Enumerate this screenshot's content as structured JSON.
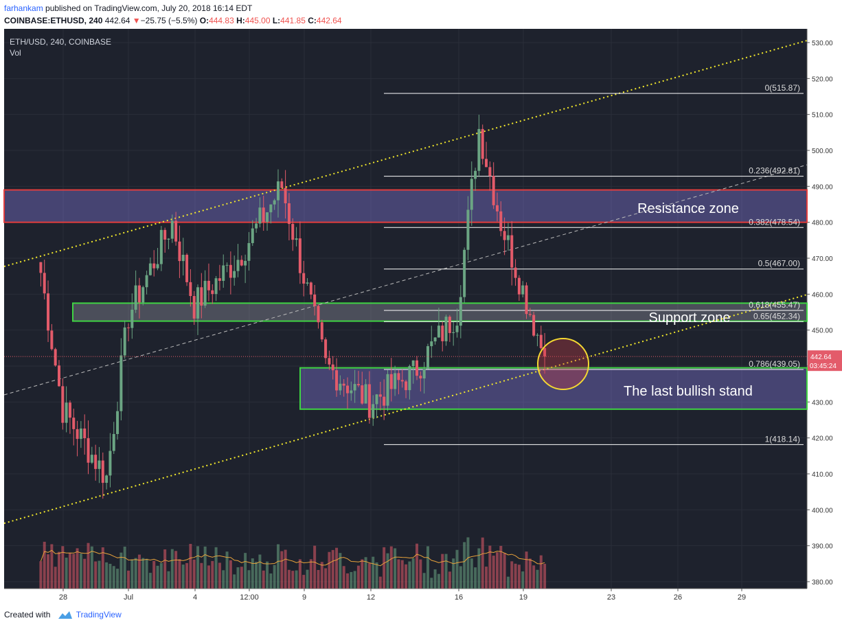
{
  "header": {
    "author": "farhankam",
    "published_text": " published on TradingView.com, July 20, 2018 16:14 EDT",
    "symbol": "COINBASE:ETHUSD, 240",
    "last": "442.64",
    "change_arrow": "▼",
    "change": "−25.75 (−5.5%)",
    "o_label": "O:",
    "o": "444.83",
    "h_label": "H:",
    "h": "445.00",
    "l_label": "L:",
    "l": "441.85",
    "c_label": "C:",
    "c": "442.64"
  },
  "footer": {
    "created_with": "Created with",
    "brand": "TradingView",
    "logo_icon": "tradingview-logo-icon"
  },
  "chart_data": {
    "type": "candlestick",
    "title": "ETH/USD, 240, COINBASE",
    "subtitle": "Vol",
    "ylim": [
      378,
      532
    ],
    "yticks": [
      "530.00",
      "520.00",
      "510.00",
      "500.00",
      "490.00",
      "480.00",
      "470.00",
      "460.00",
      "450.00",
      "440.00",
      "430.00",
      "420.00",
      "410.00",
      "400.00",
      "390.00",
      "380.00"
    ],
    "xticks": [
      "28",
      "Jul",
      "4",
      "12:00",
      "9",
      "12",
      "16",
      "19",
      "23",
      "26",
      "29"
    ],
    "last_price": "442.64",
    "countdown": "03:45:24",
    "colors": {
      "background": "#1e222d",
      "up": "#6ba583",
      "down": "#e35b6a",
      "resistance": "#e23d3d",
      "support": "#3fd443",
      "fib": "#ffffff",
      "trend": "#f4ea2b",
      "circle": "#f4d832"
    },
    "fib_levels": [
      {
        "label": "0(515.87)",
        "value": 515.87
      },
      {
        "label": "0.236(492.81)",
        "value": 492.81
      },
      {
        "label": "0.382(478.54)",
        "value": 478.54
      },
      {
        "label": "0.5(467.00)",
        "value": 467.0
      },
      {
        "label": "0.618(455.47)",
        "value": 455.47
      },
      {
        "label": "0.65(452.34)",
        "value": 452.34
      },
      {
        "label": "0.786(439.05)",
        "value": 439.05
      },
      {
        "label": "1(418.14)",
        "value": 418.14
      }
    ],
    "zones": [
      {
        "label": "Resistance zone",
        "low": 480,
        "high": 489
      },
      {
        "label": "Support zone",
        "low": 452.5,
        "high": 457.5
      },
      {
        "label": "The last bullish stand",
        "low": 428,
        "high": 439.5
      }
    ],
    "key_points": [
      {
        "x": "Jun 26",
        "close": 466
      },
      {
        "x": "Jun 27",
        "close": 428
      },
      {
        "x": "Jun 29",
        "close": 409
      },
      {
        "x": "Jul 1",
        "close": 454
      },
      {
        "x": "Jul 3",
        "close": 480
      },
      {
        "x": "Jul 4",
        "close": 457
      },
      {
        "x": "Jul 6",
        "close": 470
      },
      {
        "x": "Jul 8",
        "close": 490
      },
      {
        "x": "Jul 10",
        "close": 440
      },
      {
        "x": "Jul 12",
        "close": 430
      },
      {
        "x": "Jul 14",
        "close": 438
      },
      {
        "x": "Jul 16",
        "close": 455
      },
      {
        "x": "Jul 17",
        "close": 506
      },
      {
        "x": "Jul 18",
        "close": 480
      },
      {
        "x": "Jul 20",
        "close": 442.64
      }
    ]
  }
}
